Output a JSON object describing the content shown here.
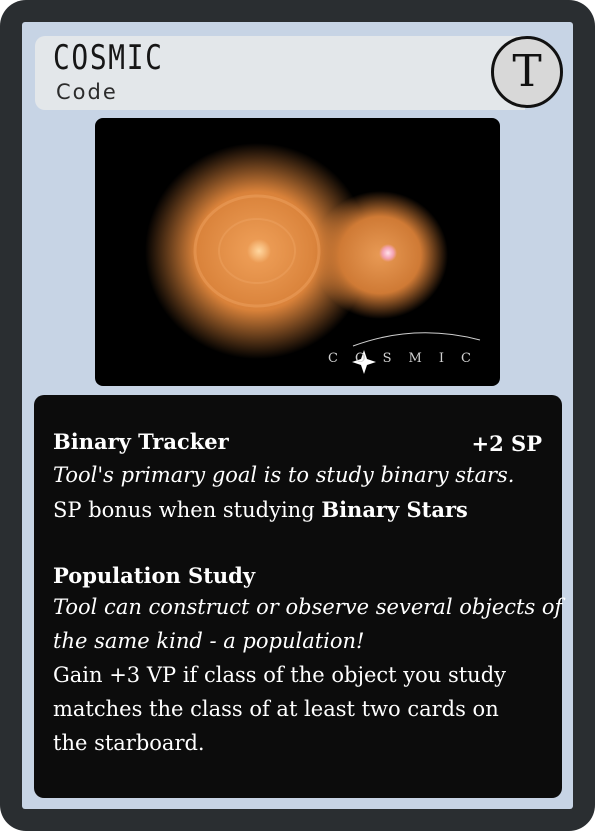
{
  "header": {
    "title": "COSMIC",
    "subtitle": "Code",
    "badge": "T"
  },
  "artwork": {
    "logo_text": "COSMIC"
  },
  "abilities": [
    {
      "name": "Binary Tracker",
      "bonus": "+2 SP",
      "flavor": "Tool's primary goal is to study binary stars.",
      "effect_prefix": "SP bonus when studying ",
      "effect_bold": "Binary Stars"
    },
    {
      "name": "Population Study",
      "flavor_lines": [
        "Tool can construct or observe several objects of",
        "the same kind - a population!"
      ],
      "effect_lines": [
        "Gain +3 VP if class of the object you study",
        "matches the class of at least two cards on",
        "the starboard."
      ]
    }
  ],
  "colors": {
    "frame": "#2a2e31",
    "panel": "#c7d4e5",
    "title_bar": "#e3e7ea",
    "nebula": "#d9823a"
  }
}
